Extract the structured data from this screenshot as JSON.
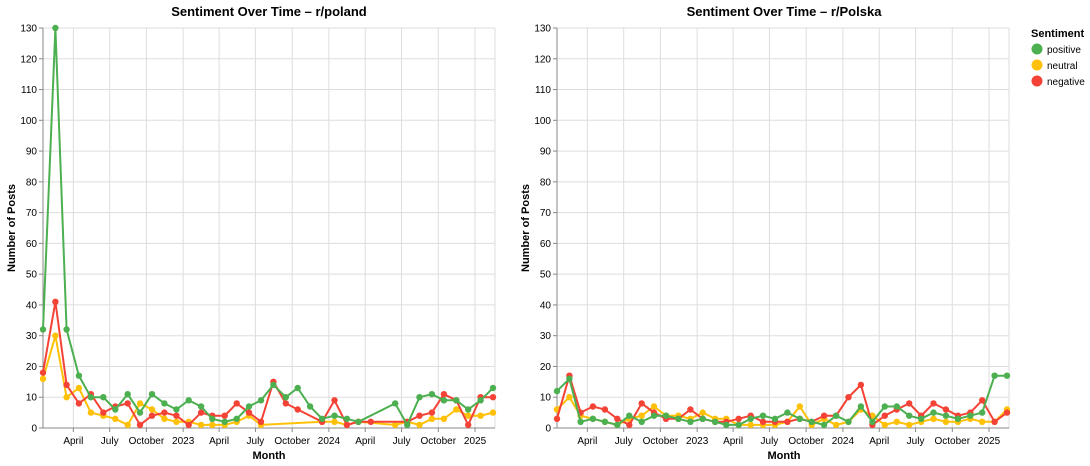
{
  "colors": {
    "positive": "#4caf50",
    "neutral": "#ffc107",
    "negative": "#f44336"
  },
  "legend": {
    "title": "Sentiment",
    "entries": [
      "positive",
      "neutral",
      "negative"
    ]
  },
  "chart_data": [
    {
      "type": "line",
      "title": "Sentiment Over Time – r/poland",
      "xlabel": "Month",
      "ylabel": "Number of Posts",
      "ylim": [
        0,
        130
      ],
      "yticks": [
        0,
        10,
        20,
        30,
        40,
        50,
        60,
        70,
        80,
        90,
        100,
        110,
        120,
        130
      ],
      "xlim": [
        "2022-01-15",
        "2025-02-20"
      ],
      "xticks": [
        {
          "date": "2022-04-01",
          "label": "April"
        },
        {
          "date": "2022-07-01",
          "label": "July"
        },
        {
          "date": "2022-10-01",
          "label": "October"
        },
        {
          "date": "2023-01-01",
          "label": "2023"
        },
        {
          "date": "2023-04-01",
          "label": "April"
        },
        {
          "date": "2023-07-01",
          "label": "July"
        },
        {
          "date": "2023-10-01",
          "label": "October"
        },
        {
          "date": "2024-01-01",
          "label": "2024"
        },
        {
          "date": "2024-04-01",
          "label": "April"
        },
        {
          "date": "2024-07-01",
          "label": "July"
        },
        {
          "date": "2024-10-01",
          "label": "October"
        },
        {
          "date": "2025-01-01",
          "label": "2025"
        }
      ],
      "series": [
        {
          "name": "positive",
          "points": [
            [
              "2022-01-15",
              32
            ],
            [
              "2022-02-15",
              130
            ],
            [
              "2022-03-15",
              32
            ],
            [
              "2022-04-15",
              17
            ],
            [
              "2022-05-15",
              10
            ],
            [
              "2022-06-15",
              10
            ],
            [
              "2022-07-15",
              6
            ],
            [
              "2022-08-15",
              11
            ],
            [
              "2022-09-15",
              5
            ],
            [
              "2022-10-15",
              11
            ],
            [
              "2022-11-15",
              8
            ],
            [
              "2022-12-15",
              6
            ],
            [
              "2023-01-15",
              9
            ],
            [
              "2023-02-15",
              7
            ],
            [
              "2023-03-15",
              3
            ],
            [
              "2023-04-15",
              2
            ],
            [
              "2023-05-15",
              3
            ],
            [
              "2023-06-15",
              7
            ],
            [
              "2023-07-15",
              9
            ],
            [
              "2023-08-15",
              14
            ],
            [
              "2023-09-15",
              10
            ],
            [
              "2023-10-15",
              13
            ],
            [
              "2023-11-15",
              7
            ],
            [
              "2023-12-15",
              3
            ],
            [
              "2024-01-15",
              4
            ],
            [
              "2024-02-15",
              3
            ],
            [
              "2024-03-15",
              2
            ],
            [
              "2024-06-15",
              8
            ],
            [
              "2024-07-15",
              1
            ],
            [
              "2024-08-15",
              10
            ],
            [
              "2024-09-15",
              11
            ],
            [
              "2024-10-15",
              9
            ],
            [
              "2024-11-15",
              9
            ],
            [
              "2024-12-15",
              6
            ],
            [
              "2025-01-15",
              9
            ],
            [
              "2025-02-15",
              13
            ]
          ]
        },
        {
          "name": "neutral",
          "points": [
            [
              "2022-01-15",
              16
            ],
            [
              "2022-02-15",
              30
            ],
            [
              "2022-03-15",
              10
            ],
            [
              "2022-04-15",
              13
            ],
            [
              "2022-05-15",
              5
            ],
            [
              "2022-06-15",
              4
            ],
            [
              "2022-07-15",
              3
            ],
            [
              "2022-08-15",
              1
            ],
            [
              "2022-09-15",
              8
            ],
            [
              "2022-10-15",
              6
            ],
            [
              "2022-11-15",
              3
            ],
            [
              "2022-12-15",
              2
            ],
            [
              "2023-01-15",
              2
            ],
            [
              "2023-02-15",
              1
            ],
            [
              "2023-03-15",
              1
            ],
            [
              "2023-04-15",
              1
            ],
            [
              "2023-05-15",
              2
            ],
            [
              "2023-06-15",
              4
            ],
            [
              "2023-07-15",
              1
            ],
            [
              "2023-12-15",
              2
            ],
            [
              "2024-01-15",
              2
            ],
            [
              "2024-02-15",
              1
            ],
            [
              "2024-03-15",
              2
            ],
            [
              "2024-06-15",
              1
            ],
            [
              "2024-07-15",
              2
            ],
            [
              "2024-08-15",
              1
            ],
            [
              "2024-09-15",
              3
            ],
            [
              "2024-10-15",
              3
            ],
            [
              "2024-11-15",
              6
            ],
            [
              "2024-12-15",
              4
            ],
            [
              "2025-01-15",
              4
            ],
            [
              "2025-02-15",
              5
            ]
          ]
        },
        {
          "name": "negative",
          "points": [
            [
              "2022-01-15",
              18
            ],
            [
              "2022-02-15",
              41
            ],
            [
              "2022-03-15",
              14
            ],
            [
              "2022-04-15",
              8
            ],
            [
              "2022-05-15",
              11
            ],
            [
              "2022-06-15",
              5
            ],
            [
              "2022-07-15",
              7
            ],
            [
              "2022-08-15",
              8
            ],
            [
              "2022-09-15",
              1
            ],
            [
              "2022-10-15",
              4
            ],
            [
              "2022-11-15",
              5
            ],
            [
              "2022-12-15",
              4
            ],
            [
              "2023-01-15",
              1
            ],
            [
              "2023-02-15",
              5
            ],
            [
              "2023-03-15",
              4
            ],
            [
              "2023-04-15",
              4
            ],
            [
              "2023-05-15",
              8
            ],
            [
              "2023-06-15",
              5
            ],
            [
              "2023-07-15",
              2
            ],
            [
              "2023-08-15",
              15
            ],
            [
              "2023-09-15",
              8
            ],
            [
              "2023-10-15",
              6
            ],
            [
              "2023-12-15",
              2
            ],
            [
              "2024-01-15",
              9
            ],
            [
              "2024-02-15",
              1
            ],
            [
              "2024-03-15",
              2
            ],
            [
              "2024-04-15",
              2
            ],
            [
              "2024-07-15",
              2
            ],
            [
              "2024-08-15",
              4
            ],
            [
              "2024-09-15",
              5
            ],
            [
              "2024-10-15",
              11
            ],
            [
              "2024-11-15",
              9
            ],
            [
              "2024-12-15",
              1
            ],
            [
              "2025-01-15",
              10
            ],
            [
              "2025-02-15",
              10
            ]
          ]
        }
      ]
    },
    {
      "type": "line",
      "title": "Sentiment Over Time – r/Polska",
      "xlabel": "Month",
      "ylabel": "Number of Posts",
      "ylim": [
        0,
        130
      ],
      "yticks": [
        0,
        10,
        20,
        30,
        40,
        50,
        60,
        70,
        80,
        90,
        100,
        110,
        120,
        130
      ],
      "xlim": [
        "2022-01-15",
        "2025-02-20"
      ],
      "xticks": [
        {
          "date": "2022-04-01",
          "label": "April"
        },
        {
          "date": "2022-07-01",
          "label": "July"
        },
        {
          "date": "2022-10-01",
          "label": "October"
        },
        {
          "date": "2023-01-01",
          "label": "2023"
        },
        {
          "date": "2023-04-01",
          "label": "April"
        },
        {
          "date": "2023-07-01",
          "label": "July"
        },
        {
          "date": "2023-10-01",
          "label": "October"
        },
        {
          "date": "2024-01-01",
          "label": "2024"
        },
        {
          "date": "2024-04-01",
          "label": "April"
        },
        {
          "date": "2024-07-01",
          "label": "July"
        },
        {
          "date": "2024-10-01",
          "label": "October"
        },
        {
          "date": "2025-01-01",
          "label": "2025"
        }
      ],
      "series": [
        {
          "name": "positive",
          "points": [
            [
              "2022-01-15",
              12
            ],
            [
              "2022-02-15",
              16
            ],
            [
              "2022-03-15",
              2
            ],
            [
              "2022-04-15",
              3
            ],
            [
              "2022-05-15",
              2
            ],
            [
              "2022-06-15",
              1
            ],
            [
              "2022-07-15",
              4
            ],
            [
              "2022-08-15",
              2
            ],
            [
              "2022-09-15",
              4
            ],
            [
              "2022-10-15",
              4
            ],
            [
              "2022-11-15",
              3
            ],
            [
              "2022-12-15",
              2
            ],
            [
              "2023-01-15",
              3
            ],
            [
              "2023-02-15",
              2
            ],
            [
              "2023-03-15",
              1
            ],
            [
              "2023-04-15",
              1
            ],
            [
              "2023-05-15",
              3
            ],
            [
              "2023-06-15",
              4
            ],
            [
              "2023-07-15",
              3
            ],
            [
              "2023-08-15",
              5
            ],
            [
              "2023-09-15",
              3
            ],
            [
              "2023-10-15",
              2
            ],
            [
              "2023-11-15",
              1
            ],
            [
              "2023-12-15",
              4
            ],
            [
              "2024-01-15",
              2
            ],
            [
              "2024-02-15",
              7
            ],
            [
              "2024-03-15",
              2
            ],
            [
              "2024-04-15",
              7
            ],
            [
              "2024-05-15",
              7
            ],
            [
              "2024-06-15",
              4
            ],
            [
              "2024-07-15",
              3
            ],
            [
              "2024-08-15",
              5
            ],
            [
              "2024-09-15",
              4
            ],
            [
              "2024-10-15",
              3
            ],
            [
              "2024-11-15",
              4
            ],
            [
              "2024-12-15",
              5
            ],
            [
              "2025-01-15",
              17
            ],
            [
              "2025-02-15",
              17
            ]
          ]
        },
        {
          "name": "neutral",
          "points": [
            [
              "2022-01-15",
              6
            ],
            [
              "2022-02-15",
              10
            ],
            [
              "2022-03-15",
              4
            ],
            [
              "2022-04-15",
              3
            ],
            [
              "2022-05-15",
              2
            ],
            [
              "2022-06-15",
              1
            ],
            [
              "2022-07-15",
              3
            ],
            [
              "2022-08-15",
              4
            ],
            [
              "2022-09-15",
              7
            ],
            [
              "2022-10-15",
              4
            ],
            [
              "2022-11-15",
              4
            ],
            [
              "2022-12-15",
              3
            ],
            [
              "2023-01-15",
              5
            ],
            [
              "2023-02-15",
              3
            ],
            [
              "2023-03-15",
              3
            ],
            [
              "2023-04-15",
              1
            ],
            [
              "2023-05-15",
              1
            ],
            [
              "2023-06-15",
              1
            ],
            [
              "2023-07-15",
              1
            ],
            [
              "2023-08-15",
              2
            ],
            [
              "2023-09-15",
              7
            ],
            [
              "2023-10-15",
              1
            ],
            [
              "2023-11-15",
              3
            ],
            [
              "2023-12-15",
              1
            ],
            [
              "2024-01-15",
              2
            ],
            [
              "2024-02-15",
              6
            ],
            [
              "2024-03-15",
              4
            ],
            [
              "2024-04-15",
              1
            ],
            [
              "2024-05-15",
              2
            ],
            [
              "2024-06-15",
              1
            ],
            [
              "2024-07-15",
              2
            ],
            [
              "2024-08-15",
              3
            ],
            [
              "2024-09-15",
              2
            ],
            [
              "2024-10-15",
              2
            ],
            [
              "2024-11-15",
              3
            ],
            [
              "2024-12-15",
              2
            ],
            [
              "2025-01-15",
              2
            ],
            [
              "2025-02-15",
              6
            ]
          ]
        },
        {
          "name": "negative",
          "points": [
            [
              "2022-01-15",
              3
            ],
            [
              "2022-02-15",
              17
            ],
            [
              "2022-03-15",
              5
            ],
            [
              "2022-04-15",
              7
            ],
            [
              "2022-05-15",
              6
            ],
            [
              "2022-06-15",
              3
            ],
            [
              "2022-07-15",
              1
            ],
            [
              "2022-08-15",
              8
            ],
            [
              "2022-09-15",
              5
            ],
            [
              "2022-10-15",
              3
            ],
            [
              "2022-11-15",
              3
            ],
            [
              "2022-12-15",
              6
            ],
            [
              "2023-01-15",
              3
            ],
            [
              "2023-02-15",
              2
            ],
            [
              "2023-03-15",
              2
            ],
            [
              "2023-04-15",
              3
            ],
            [
              "2023-05-15",
              4
            ],
            [
              "2023-06-15",
              2
            ],
            [
              "2023-07-15",
              2
            ],
            [
              "2023-08-15",
              2
            ],
            [
              "2023-09-15",
              3
            ],
            [
              "2023-10-15",
              2
            ],
            [
              "2023-11-15",
              4
            ],
            [
              "2023-12-15",
              4
            ],
            [
              "2024-01-15",
              10
            ],
            [
              "2024-02-15",
              14
            ],
            [
              "2024-03-15",
              1
            ],
            [
              "2024-04-15",
              4
            ],
            [
              "2024-05-15",
              6
            ],
            [
              "2024-06-15",
              8
            ],
            [
              "2024-07-15",
              4
            ],
            [
              "2024-08-15",
              8
            ],
            [
              "2024-09-15",
              6
            ],
            [
              "2024-10-15",
              4
            ],
            [
              "2024-11-15",
              5
            ],
            [
              "2024-12-15",
              9
            ],
            [
              "2025-01-15",
              2
            ],
            [
              "2025-02-15",
              5
            ]
          ]
        }
      ]
    }
  ]
}
